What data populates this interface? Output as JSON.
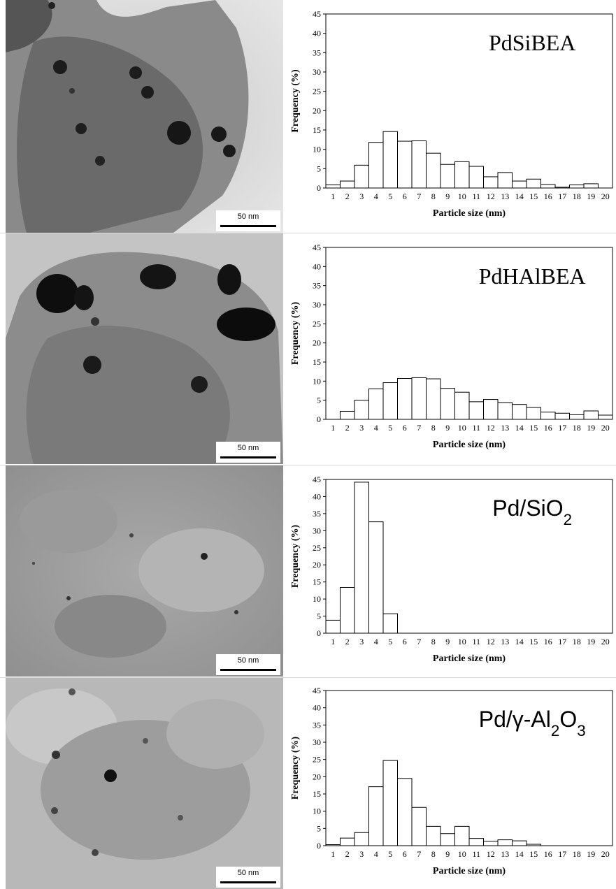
{
  "figure": {
    "scale_bar_label": "50 nm",
    "xlabel": "Particle size (nm)",
    "ylabel": "Frequency (%)"
  },
  "chart_data": [
    {
      "type": "bar",
      "title": "PdSiBEA",
      "categories": [
        "1",
        "2",
        "3",
        "4",
        "5",
        "6",
        "7",
        "8",
        "9",
        "10",
        "11",
        "12",
        "13",
        "14",
        "15",
        "16",
        "17",
        "18",
        "19",
        "20"
      ],
      "values": [
        0.8,
        1.8,
        5.9,
        11.8,
        14.6,
        12.1,
        12.2,
        9.0,
        6.1,
        6.8,
        5.6,
        2.9,
        4.0,
        1.8,
        2.3,
        0.9,
        0.2,
        0.8,
        1.1,
        0
      ],
      "xlabel": "Particle size (nm)",
      "ylabel": "Frequency (%)",
      "ylim": [
        0,
        45
      ],
      "yticks": [
        0,
        5,
        10,
        15,
        20,
        25,
        30,
        35,
        40,
        45
      ],
      "grid": false
    },
    {
      "type": "bar",
      "title": "PdHAlBEA",
      "categories": [
        "1",
        "2",
        "3",
        "4",
        "5",
        "6",
        "7",
        "8",
        "9",
        "10",
        "11",
        "12",
        "13",
        "14",
        "15",
        "16",
        "17",
        "18",
        "19",
        "20"
      ],
      "values": [
        0,
        2.1,
        5.0,
        8.0,
        9.6,
        10.7,
        10.9,
        10.6,
        8.1,
        7.1,
        4.6,
        5.2,
        4.4,
        3.9,
        3.1,
        1.9,
        1.6,
        1.2,
        2.2,
        1.1
      ],
      "xlabel": "Particle size (nm)",
      "ylabel": "Frequency (%)",
      "ylim": [
        0,
        45
      ],
      "yticks": [
        0,
        5,
        10,
        15,
        20,
        25,
        30,
        35,
        40,
        45
      ],
      "grid": false
    },
    {
      "type": "bar",
      "title": "Pd/SiO2",
      "categories": [
        "1",
        "2",
        "3",
        "4",
        "5",
        "6",
        "7",
        "8",
        "9",
        "10",
        "11",
        "12",
        "13",
        "14",
        "15",
        "16",
        "17",
        "18",
        "19",
        "20"
      ],
      "values": [
        3.8,
        13.4,
        44.2,
        32.6,
        5.7,
        0,
        0,
        0,
        0,
        0,
        0,
        0,
        0,
        0,
        0,
        0,
        0,
        0,
        0,
        0
      ],
      "xlabel": "Particle size (nm)",
      "ylabel": "Frequency (%)",
      "ylim": [
        0,
        45
      ],
      "yticks": [
        0,
        5,
        10,
        15,
        20,
        25,
        30,
        35,
        40,
        45
      ],
      "grid": false
    },
    {
      "type": "bar",
      "title": "Pd/γ-Al2O3",
      "categories": [
        "1",
        "2",
        "3",
        "4",
        "5",
        "6",
        "7",
        "8",
        "9",
        "10",
        "11",
        "12",
        "13",
        "14",
        "15",
        "16",
        "17",
        "18",
        "19",
        "20"
      ],
      "values": [
        0.3,
        2.2,
        3.8,
        17.1,
        24.7,
        19.5,
        11.1,
        5.6,
        3.5,
        5.6,
        2.1,
        1.3,
        1.7,
        1.4,
        0.4,
        0,
        0,
        0,
        0,
        0
      ],
      "xlabel": "Particle size (nm)",
      "ylabel": "Frequency (%)",
      "ylim": [
        0,
        45
      ],
      "yticks": [
        0,
        5,
        10,
        15,
        20,
        25,
        30,
        35,
        40,
        45
      ],
      "grid": false
    }
  ]
}
